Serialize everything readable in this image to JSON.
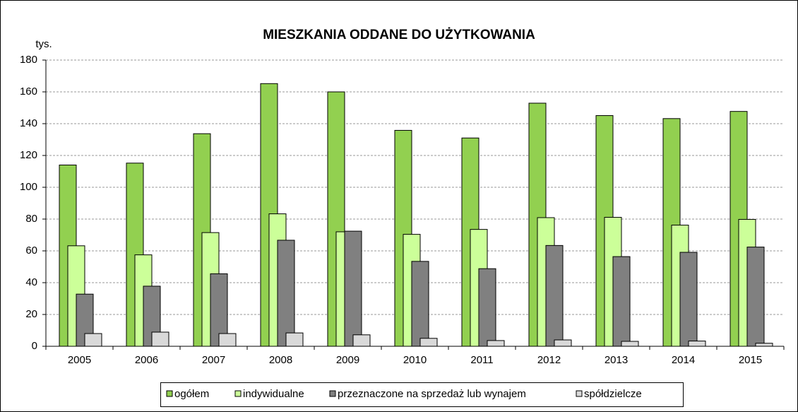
{
  "chart_data": {
    "type": "bar",
    "title": "MIESZKANIA ODDANE DO UŻYTKOWANIA",
    "y_label": "tys.",
    "categories": [
      "2005",
      "2006",
      "2007",
      "2008",
      "2009",
      "2010",
      "2011",
      "2012",
      "2013",
      "2014",
      "2015"
    ],
    "series": [
      {
        "name": "ogółem",
        "color": "#92d050",
        "values": [
          114,
          115.2,
          133.7,
          165.2,
          160,
          135.8,
          131,
          152.9,
          145.1,
          143.2,
          147.7
        ]
      },
      {
        "name": "indywidualne",
        "color": "#ccff99",
        "values": [
          63.2,
          57.5,
          71.5,
          83.3,
          72,
          70.4,
          73.5,
          80.9,
          81.1,
          76.2,
          79.8
        ]
      },
      {
        "name": "przeznaczone na sprzedaż lub wynajem",
        "color": "#808080",
        "values": [
          32.8,
          37.8,
          45.6,
          66.7,
          72.4,
          53.4,
          48.8,
          63.4,
          56.4,
          59.1,
          62.4
        ]
      },
      {
        "name": "spółdzielcze",
        "color": "#d9d9d9",
        "values": [
          8,
          8.9,
          8,
          8.4,
          7.2,
          5,
          3.6,
          4,
          3.1,
          3.3,
          1.9
        ]
      }
    ],
    "ylim": [
      0,
      180
    ],
    "yticks": [
      0,
      20,
      40,
      60,
      80,
      100,
      120,
      140,
      160,
      180
    ],
    "grid": true,
    "legend": "bottom"
  }
}
